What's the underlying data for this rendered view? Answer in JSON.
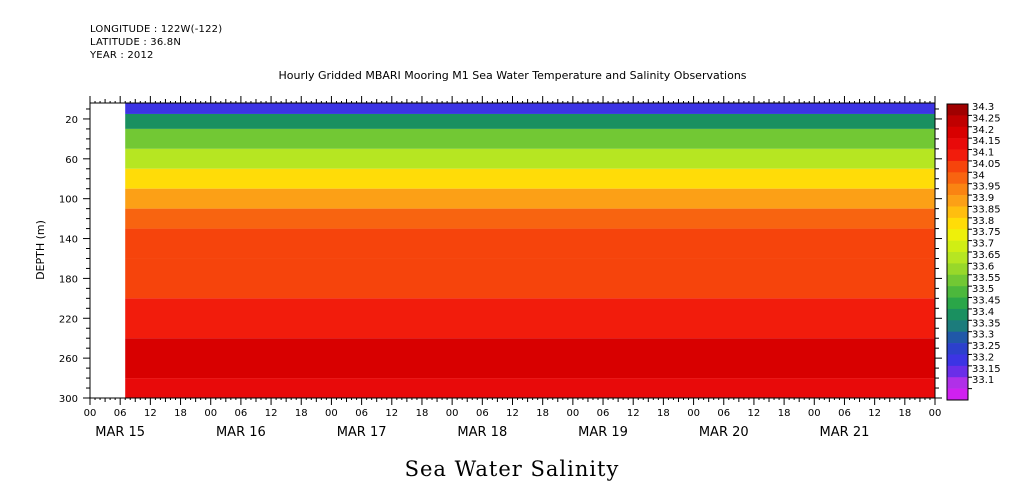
{
  "header": {
    "longitude": "LONGITUDE : 122W(-122)",
    "latitude": "LATITUDE : 36.8N",
    "year": "YEAR : 2012",
    "title": "Hourly Gridded MBARI Mooring M1 Sea Water Temperature and Salinity Observations"
  },
  "caption": "Sea Water Salinity",
  "chart_data": {
    "type": "heatmap",
    "title": "Hourly Gridded MBARI Mooring M1 Sea Water Temperature and Salinity Observations",
    "xlabel": "",
    "ylabel": "DEPTH (m)",
    "variable": "Sea Water Salinity",
    "x_range": [
      "2012-03-15 00:00",
      "2012-03-22 00:00"
    ],
    "y_range": [
      300,
      4
    ],
    "y_inverted": true,
    "data_start": "2012-03-15 07:00",
    "y_tick_labels": [
      "20",
      "60",
      "100",
      "140",
      "180",
      "220",
      "260",
      "300"
    ],
    "x_hour_labels": [
      "00",
      "06",
      "12",
      "18"
    ],
    "x_date_labels": [
      "MAR 15",
      "MAR 16",
      "MAR 17",
      "MAR 18",
      "MAR 19",
      "MAR 20",
      "MAR 21"
    ],
    "colorbar": {
      "levels": [
        "34.3",
        "34.25",
        "34.2",
        "34.15",
        "34.1",
        "34.05",
        "34",
        "33.95",
        "33.9",
        "33.85",
        "33.8",
        "33.75",
        "33.7",
        "33.65",
        "33.6",
        "33.55",
        "33.5",
        "33.45",
        "33.4",
        "33.35",
        "33.3",
        "33.25",
        "33.2",
        "33.15",
        "33.1"
      ],
      "colors": [
        "#a00000",
        "#c00000",
        "#d80000",
        "#e80a0a",
        "#f21c0c",
        "#f6440c",
        "#f86410",
        "#fa8412",
        "#fca016",
        "#ffbe0f",
        "#ffdc08",
        "#eef00a",
        "#d0ee14",
        "#b6e622",
        "#98d82a",
        "#72c834",
        "#4cb83c",
        "#2aa648",
        "#1a9060",
        "#1c7c7c",
        "#2058a8",
        "#2c40cc",
        "#3c34e4",
        "#6a2ee8",
        "#b030e8",
        "#d020f0"
      ]
    },
    "depth_profile": [
      {
        "depth": 10,
        "salinity": 33.2
      },
      {
        "depth": 20,
        "salinity": 33.4
      },
      {
        "depth": 40,
        "salinity": 33.55
      },
      {
        "depth": 60,
        "salinity": 33.65
      },
      {
        "depth": 80,
        "salinity": 33.8
      },
      {
        "depth": 100,
        "salinity": 33.9
      },
      {
        "depth": 120,
        "salinity": 34.0
      },
      {
        "depth": 140,
        "salinity": 34.05
      },
      {
        "depth": 180,
        "salinity": 34.05
      },
      {
        "depth": 220,
        "salinity": 34.1
      },
      {
        "depth": 260,
        "salinity": 34.2
      },
      {
        "depth": 300,
        "salinity": 34.15
      }
    ]
  }
}
